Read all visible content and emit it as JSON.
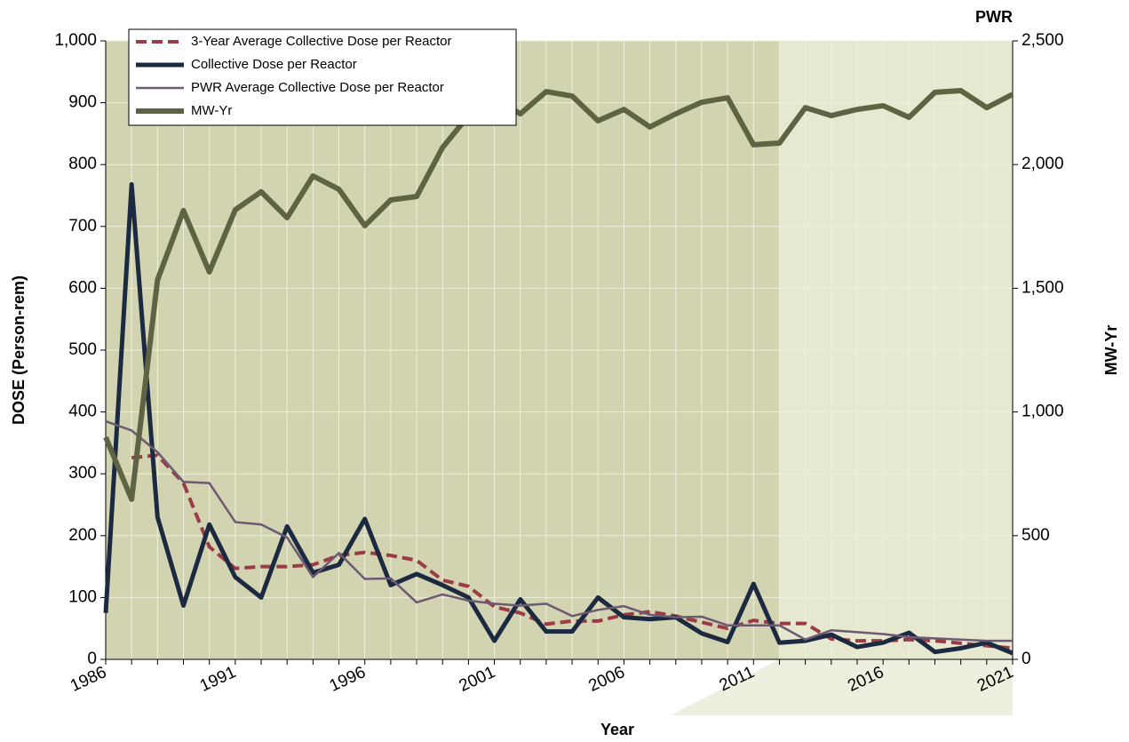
{
  "chart_data": {
    "type": "line",
    "title": "PWR",
    "xlabel": "Year",
    "ylabel": "DOSE (Person-rem)",
    "y2label": "MW-Yr",
    "x": [
      1986,
      1987,
      1988,
      1989,
      1990,
      1991,
      1992,
      1993,
      1994,
      1995,
      1996,
      1997,
      1998,
      1999,
      2000,
      2001,
      2002,
      2003,
      2004,
      2005,
      2006,
      2007,
      2008,
      2009,
      2010,
      2011,
      2012,
      2013,
      2014,
      2015,
      2016,
      2017,
      2018,
      2019,
      2020,
      2021
    ],
    "xlim": [
      1986,
      2021
    ],
    "xticks": [
      1986,
      1991,
      1996,
      2001,
      2006,
      2011,
      2016,
      2021
    ],
    "ylim": [
      0,
      1000
    ],
    "yticks": [
      0,
      100,
      200,
      300,
      400,
      500,
      600,
      700,
      800,
      900,
      {
        "value": 1000,
        "label": "1,000"
      }
    ],
    "y2lim": [
      0,
      2500
    ],
    "y2ticks": [
      0,
      500,
      {
        "value": 1000,
        "label": "1,000"
      },
      {
        "value": 1500,
        "label": "1,500"
      },
      {
        "value": 2000,
        "label": "2,000"
      },
      {
        "value": 2500,
        "label": "2,500"
      }
    ],
    "grid": true,
    "legend": "upper left",
    "series": [
      {
        "name": "3-Year Average Collective Dose per Reactor",
        "color": "#9b3b46",
        "style": "dashed",
        "values": [
          null,
          326,
          330,
          285,
          182,
          147,
          150,
          150,
          153,
          168,
          173,
          168,
          160,
          128,
          118,
          85,
          75,
          57,
          62,
          62,
          72,
          77,
          70,
          60,
          50,
          63,
          58,
          58,
          33,
          30,
          30,
          32,
          30,
          26,
          22,
          18
        ]
      },
      {
        "name": "Collective Dose per Reactor",
        "color": "#1b2a40",
        "style": "solid",
        "values": [
          75,
          768,
          230,
          87,
          218,
          133,
          100,
          215,
          140,
          153,
          227,
          120,
          138,
          120,
          100,
          30,
          97,
          45,
          45,
          100,
          68,
          65,
          68,
          42,
          28,
          122,
          27,
          30,
          40,
          20,
          27,
          43,
          12,
          18,
          27,
          10
        ]
      },
      {
        "name": "PWR Average Collective Dose per Reactor",
        "color": "#6b5a72",
        "style": "solid",
        "values": [
          385,
          370,
          335,
          287,
          285,
          222,
          218,
          197,
          133,
          172,
          130,
          131,
          92,
          105,
          95,
          90,
          87,
          90,
          70,
          80,
          86,
          72,
          68,
          69,
          55,
          55,
          55,
          32,
          47,
          44,
          41,
          36,
          34,
          32,
          30,
          30
        ]
      },
      {
        "name": "MW-Yr",
        "color": "#5e6443",
        "style": "solid",
        "axis": "y2",
        "values": [
          898,
          647,
          1534,
          1814,
          1566,
          1817,
          1890,
          1785,
          1954,
          1900,
          1753,
          1857,
          1871,
          2069,
          2198,
          2270,
          2205,
          2295,
          2277,
          2177,
          2223,
          2152,
          2205,
          2252,
          2270,
          2080,
          2087,
          2230,
          2198,
          2223,
          2238,
          2191,
          2292,
          2299,
          2230,
          2284
        ]
      }
    ]
  }
}
